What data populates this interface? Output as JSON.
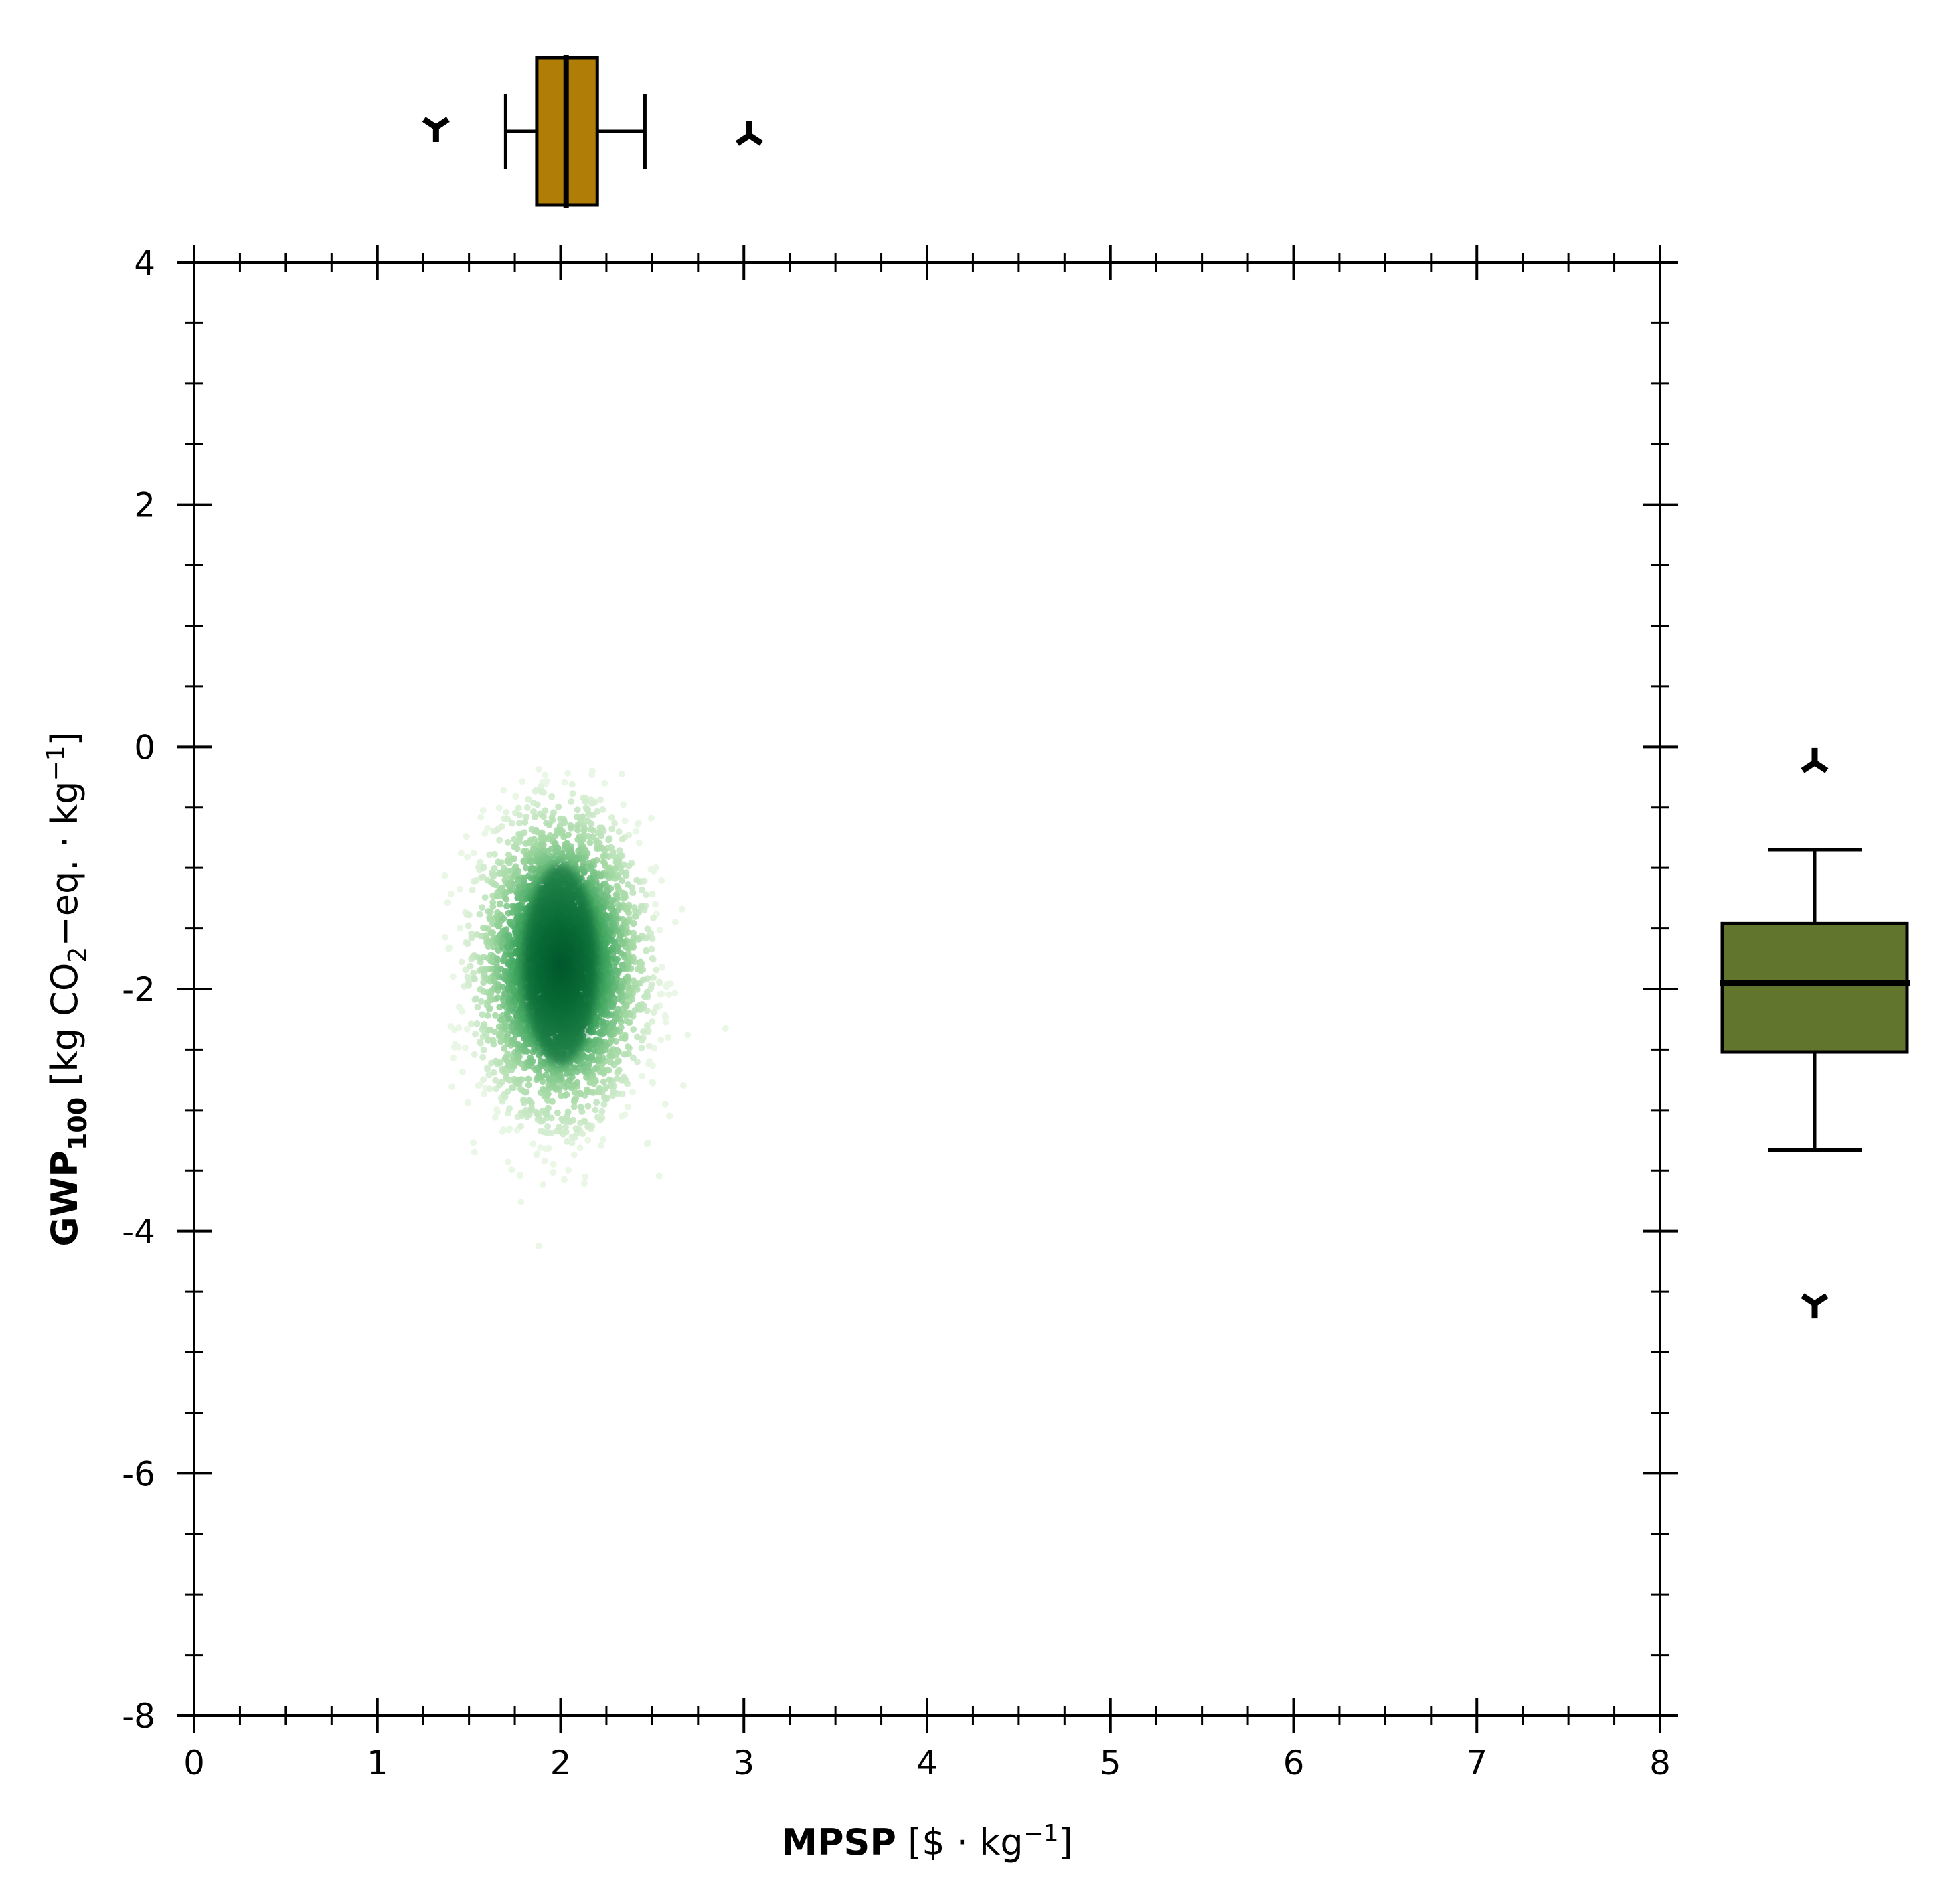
{
  "chart_data": {
    "type": "scatter",
    "subtype": "joint scatter density with marginal box plots",
    "xlabel": {
      "bold": "MPSP",
      "unit_open": " [$ · kg",
      "unit_sup": "−1",
      "unit_close": "]"
    },
    "ylabel": {
      "bold": "GWP",
      "bold_sub": "100",
      "unit_open": " [kg CO",
      "unit_sub": "2",
      "unit_mid": "−eq. · kg",
      "unit_sup": "−1",
      "unit_close": "]"
    },
    "xlim": [
      0,
      8
    ],
    "ylim": [
      -8,
      4
    ],
    "x_ticks": [
      0,
      1,
      2,
      3,
      4,
      5,
      6,
      7,
      8
    ],
    "x_tick_labels": [
      "0",
      "1",
      "2",
      "3",
      "4",
      "5",
      "6",
      "7",
      "8"
    ],
    "y_ticks": [
      -8,
      -6,
      -4,
      -2,
      0,
      2,
      4
    ],
    "y_tick_labels": [
      "-8",
      "-6",
      "-4",
      "-2",
      "0",
      "2",
      "4"
    ],
    "x_minor_step": 0.25,
    "y_minor_step": 0.5,
    "grid": false,
    "density_cloud": {
      "color_scale": "Greens",
      "center": {
        "x": 2.0,
        "y": -1.8
      },
      "spread": {
        "x": 0.2,
        "y": 0.55
      },
      "x_range": [
        1.35,
        3.05
      ],
      "y_range": [
        -4.55,
        -0.15
      ]
    },
    "marginal_x_box": {
      "color": "#b07d06",
      "whisker_low": 1.7,
      "q1": 1.87,
      "median": 2.03,
      "q3": 2.2,
      "whisker_high": 2.46,
      "outlier_low": 1.32,
      "outlier_high": 3.03
    },
    "marginal_y_box": {
      "color": "#61762c",
      "whisker_low": -3.33,
      "q1": -2.52,
      "median": -1.95,
      "q3": -1.46,
      "whisker_high": -0.85,
      "outlier_low": -4.6,
      "outlier_high": -0.13
    }
  }
}
